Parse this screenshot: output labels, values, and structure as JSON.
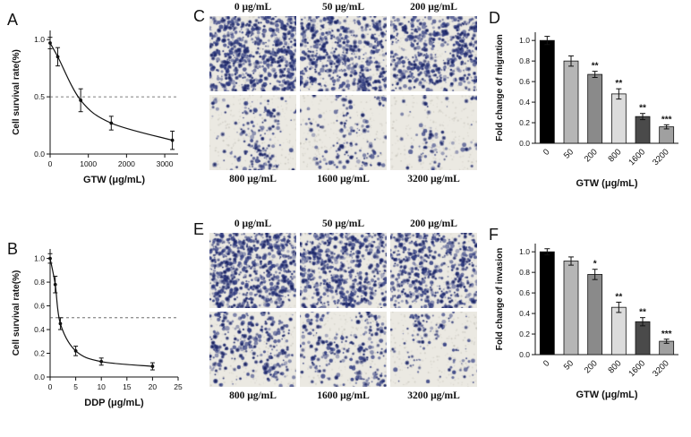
{
  "figure": {
    "background": "#ffffff",
    "panel_labels": {
      "A": "A",
      "B": "B",
      "C": "C",
      "D": "D",
      "E": "E",
      "F": "F"
    }
  },
  "micrographs": {
    "cell_color": "#2b377d",
    "bg_color": "#ebe9e2",
    "C": {
      "images": [
        {
          "label": "0 μg/mL",
          "density": 720,
          "clustered": false
        },
        {
          "label": "50 μg/mL",
          "density": 560,
          "clustered": false
        },
        {
          "label": "200 μg/mL",
          "density": 530,
          "clustered": false
        },
        {
          "label": "800 μg/mL",
          "density": 175,
          "clustered": true
        },
        {
          "label": "1600 μg/mL",
          "density": 150,
          "clustered": true
        },
        {
          "label": "3200 μg/mL",
          "density": 90,
          "clustered": true
        }
      ]
    },
    "E": {
      "images": [
        {
          "label": "0 μg/mL",
          "density": 720,
          "clustered": false
        },
        {
          "label": "50 μg/mL",
          "density": 610,
          "clustered": false
        },
        {
          "label": "200 μg/mL",
          "density": 570,
          "clustered": false
        },
        {
          "label": "800 μg/mL",
          "density": 300,
          "clustered": true
        },
        {
          "label": "1600 μg/mL",
          "density": 280,
          "clustered": true
        },
        {
          "label": "3200 μg/mL",
          "density": 115,
          "clustered": true
        }
      ]
    }
  },
  "chart_data": [
    {
      "id": "A",
      "type": "line",
      "xlabel": "GTW (μg/mL)",
      "ylabel": "Cell survival rate(%)",
      "xlim": [
        0,
        3350
      ],
      "ylim": [
        0,
        1.08
      ],
      "x_ticks": [
        0,
        1000,
        2000,
        3000
      ],
      "y_ticks": [
        0.0,
        0.5,
        1.0
      ],
      "dashed_y": 0.5,
      "x": [
        0,
        200,
        800,
        1600,
        3200
      ],
      "y": [
        0.97,
        0.85,
        0.47,
        0.27,
        0.12
      ],
      "err": [
        0.05,
        0.08,
        0.1,
        0.06,
        0.08
      ]
    },
    {
      "id": "B",
      "type": "line",
      "xlabel": "DDP (μg/mL)",
      "ylabel": "Cell survival rate(%)",
      "xlim": [
        0,
        25
      ],
      "ylim": [
        0,
        1.08
      ],
      "x_ticks": [
        0,
        5,
        10,
        15,
        20,
        25
      ],
      "y_ticks": [
        0.0,
        0.2,
        0.4,
        0.6,
        0.8,
        1.0
      ],
      "dashed_y": 0.5,
      "x": [
        0,
        1,
        2,
        5,
        10,
        20
      ],
      "y": [
        1.0,
        0.78,
        0.45,
        0.22,
        0.13,
        0.09
      ],
      "err": [
        0.04,
        0.07,
        0.05,
        0.04,
        0.03,
        0.03
      ]
    },
    {
      "id": "D",
      "type": "bar",
      "xlabel": "GTW (μg/mL)",
      "ylabel": "Fold change of migration",
      "categories": [
        "0",
        "50",
        "200",
        "800",
        "1600",
        "3200"
      ],
      "values": [
        1.0,
        0.8,
        0.67,
        0.48,
        0.26,
        0.16
      ],
      "errors": [
        0.04,
        0.05,
        0.03,
        0.05,
        0.03,
        0.02
      ],
      "stars": [
        "",
        "",
        "**",
        "**",
        "**",
        "***"
      ],
      "colors": [
        "#000000",
        "#b6b6b6",
        "#8a8a8a",
        "#dcdcdc",
        "#4a4a4a",
        "#a0a0a0"
      ],
      "y_ticks": [
        0.0,
        0.2,
        0.4,
        0.6,
        0.8,
        1.0
      ],
      "ylim": [
        0,
        1.08
      ]
    },
    {
      "id": "F",
      "type": "bar",
      "xlabel": "GTW (μg/mL)",
      "ylabel": "Fold change of invasion",
      "categories": [
        "0",
        "50",
        "200",
        "800",
        "1600",
        "3200"
      ],
      "values": [
        1.0,
        0.91,
        0.78,
        0.46,
        0.32,
        0.13
      ],
      "errors": [
        0.03,
        0.04,
        0.05,
        0.05,
        0.04,
        0.02
      ],
      "stars": [
        "",
        "",
        "*",
        "**",
        "**",
        "***"
      ],
      "colors": [
        "#000000",
        "#b6b6b6",
        "#8a8a8a",
        "#dcdcdc",
        "#4a4a4a",
        "#a0a0a0"
      ],
      "y_ticks": [
        0.0,
        0.2,
        0.4,
        0.6,
        0.8,
        1.0
      ],
      "ylim": [
        0,
        1.08
      ]
    }
  ]
}
